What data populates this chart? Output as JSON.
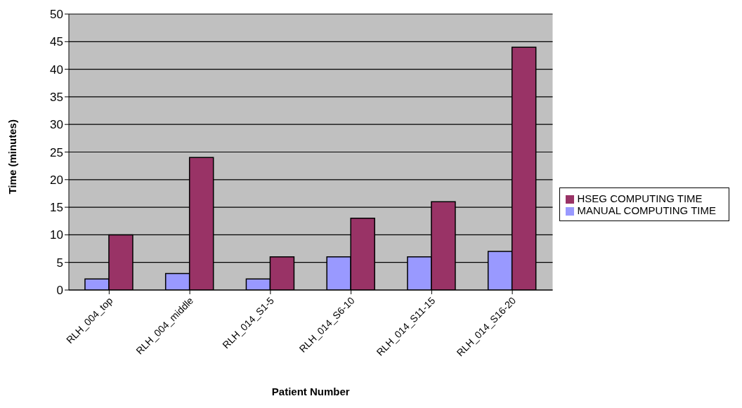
{
  "chart_data": {
    "type": "bar",
    "xlabel": "Patient Number",
    "ylabel": "Time (minutes)",
    "categories": [
      "RLH_004_top",
      "RLH_004_middle",
      "RLH_014_S1-5",
      "RLH_014_S6-10",
      "RLH_014_S11-15",
      "RLH_014_S16-20"
    ],
    "series": [
      {
        "name": "MANUAL COMPUTING TIME",
        "color": "#9999ff",
        "values": [
          2,
          3,
          2,
          6,
          6,
          7
        ]
      },
      {
        "name": "HSEG COMPUTING TIME",
        "color": "#993366",
        "values": [
          10,
          24,
          6,
          13,
          16,
          44
        ]
      }
    ],
    "ylim": [
      0,
      50
    ],
    "yticks": [
      0,
      5,
      10,
      15,
      20,
      25,
      30,
      35,
      40,
      45,
      50
    ],
    "grid": "y",
    "legend": "right"
  }
}
